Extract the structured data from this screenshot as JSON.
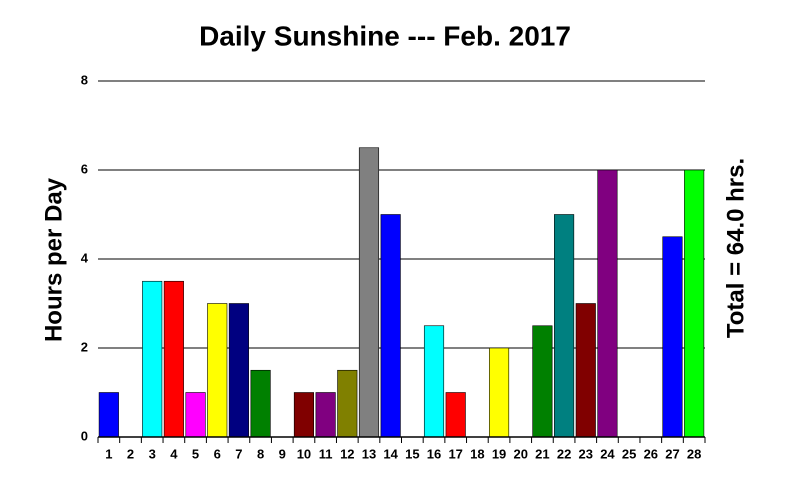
{
  "chart_data": {
    "type": "bar",
    "title": "Daily Sunshine --- Feb. 2017",
    "y_label": "Hours per Day",
    "annotation": "Total = 64.0 hrs.",
    "categories": [
      "1",
      "2",
      "3",
      "4",
      "5",
      "6",
      "7",
      "8",
      "9",
      "10",
      "11",
      "12",
      "13",
      "14",
      "15",
      "16",
      "17",
      "18",
      "19",
      "20",
      "21",
      "22",
      "23",
      "24",
      "25",
      "26",
      "27",
      "28"
    ],
    "values": [
      1,
      0,
      3.5,
      3.5,
      1,
      3,
      3,
      1.5,
      0,
      1,
      1,
      1.5,
      6.5,
      5,
      0,
      2.5,
      1,
      0,
      2,
      0,
      2.5,
      5,
      3,
      6,
      0,
      0,
      4.5,
      6
    ],
    "colors": [
      "#0000ff",
      "#00ff00",
      "#00ffff",
      "#ff0000",
      "#ff00ff",
      "#ffff00",
      "#000080",
      "#008000",
      "#008080",
      "#800000",
      "#800080",
      "#808000",
      "#808080",
      "#0000ff",
      "#00ff00",
      "#00ffff",
      "#ff0000",
      "#ff00ff",
      "#ffff00",
      "#000080",
      "#008000",
      "#008080",
      "#800000",
      "#800080",
      "#808000",
      "#808080",
      "#0000ff",
      "#00ff00"
    ],
    "ylim": [
      0,
      8
    ],
    "yticks": [
      0,
      2,
      4,
      6,
      8
    ],
    "grid": true
  }
}
